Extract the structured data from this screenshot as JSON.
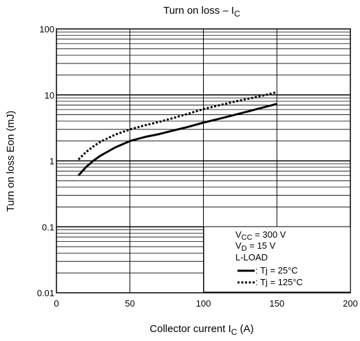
{
  "chart_data": {
    "type": "line",
    "title": {
      "main": "Turn on loss – I",
      "sub": "C"
    },
    "xlabel": {
      "main": "Collector current   I",
      "sub": "C",
      "unit": "(A)"
    },
    "ylabel": "Turn on loss   Eon   (mJ)",
    "xlim": [
      0,
      200
    ],
    "ylim": [
      0.01,
      100
    ],
    "y_scale": "log",
    "grid": true,
    "x_ticks": [
      "0",
      "50",
      "100",
      "150",
      "200"
    ],
    "y_ticks": [
      "0.01",
      "0.1",
      "1",
      "10",
      "100"
    ],
    "legend": {
      "placement": "bottom-right",
      "conditions": [
        {
          "main": "V",
          "sub": "CC",
          "rest": " = 300 V"
        },
        {
          "main": "V",
          "sub": "D",
          "rest": " = 15 V"
        },
        {
          "main": "L-LOAD",
          "sub": "",
          "rest": ""
        }
      ]
    },
    "series": [
      {
        "name": ": Tj = 25°C",
        "style": "solid",
        "color": "#000000",
        "x": [
          15,
          20,
          25,
          30,
          40,
          50,
          60,
          70,
          80,
          90,
          100,
          110,
          120,
          130,
          140,
          150
        ],
        "y": [
          0.6,
          0.8,
          1.0,
          1.2,
          1.6,
          2.0,
          2.3,
          2.55,
          2.9,
          3.3,
          3.8,
          4.3,
          4.9,
          5.6,
          6.4,
          7.3
        ]
      },
      {
        "name": ": Tj = 125°C",
        "style": "dotted",
        "color": "#000000",
        "x": [
          15,
          20,
          25,
          30,
          40,
          50,
          60,
          70,
          80,
          90,
          100,
          110,
          120,
          130,
          140,
          150
        ],
        "y": [
          1.05,
          1.35,
          1.65,
          1.95,
          2.5,
          3.0,
          3.45,
          3.9,
          4.5,
          5.2,
          6.1,
          6.9,
          7.8,
          8.7,
          9.7,
          11.0
        ]
      }
    ]
  }
}
